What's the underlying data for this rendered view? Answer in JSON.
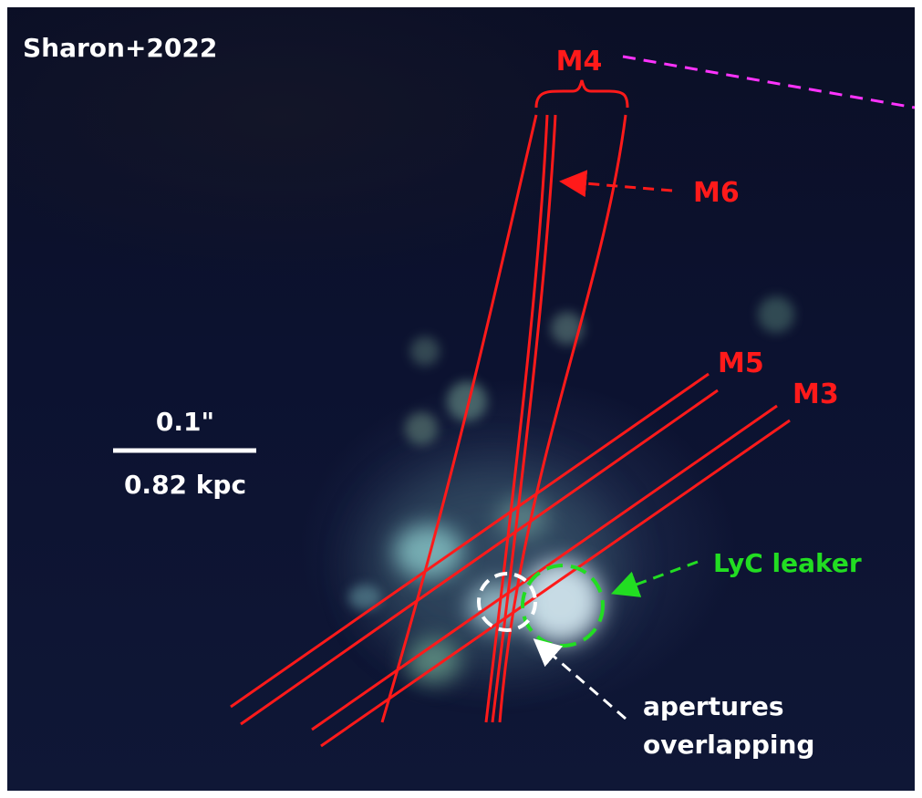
{
  "image": {
    "credit": "Sharon+2022",
    "scalebar": {
      "angular": "0.1\"",
      "physical": "0.82 kpc"
    },
    "arc_labels": {
      "m4": "M4",
      "m6": "M6",
      "m5": "M5",
      "m3": "M3"
    },
    "annotations": {
      "lyc_leaker": "LyC leaker",
      "apertures_line1": "apertures",
      "apertures_line2": "overlapping"
    },
    "colors": {
      "arc_lines": "#ff1a1a",
      "lyc_marker": "#22dd22",
      "aperture_marker": "#ffffff",
      "dashed_guide": "#ff33ff",
      "text_white": "#ffffff",
      "background": "#0c1230"
    }
  }
}
